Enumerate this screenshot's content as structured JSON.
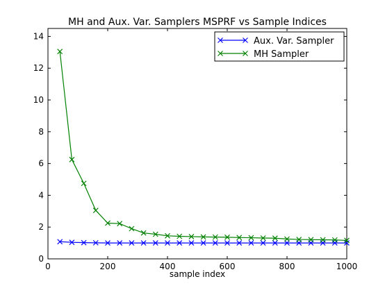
{
  "chart_data": {
    "type": "line",
    "title": "MH and Aux. Var. Samplers MSPRF vs Sample Indices",
    "xlabel": "sample index",
    "ylabel": "",
    "xlim": [
      0,
      1000
    ],
    "ylim": [
      0,
      14.5
    ],
    "xticks": [
      0,
      200,
      400,
      600,
      800,
      1000
    ],
    "yticks": [
      0,
      2,
      4,
      6,
      8,
      10,
      12,
      14
    ],
    "grid": false,
    "legend_position": "top-right",
    "x": [
      40,
      80,
      120,
      160,
      200,
      240,
      280,
      320,
      360,
      400,
      440,
      480,
      520,
      560,
      600,
      640,
      680,
      720,
      760,
      800,
      840,
      880,
      920,
      960,
      1000
    ],
    "series": [
      {
        "name": "Aux. Var. Sampler",
        "color": "#0000ff",
        "marker": "x",
        "values": [
          1.08,
          1.04,
          1.02,
          1.01,
          1.0,
          1.0,
          1.0,
          1.0,
          1.0,
          1.0,
          1.0,
          1.0,
          1.0,
          1.0,
          1.0,
          1.0,
          1.0,
          1.0,
          1.0,
          1.0,
          1.0,
          1.0,
          1.0,
          1.0,
          1.0
        ]
      },
      {
        "name": "MH Sampler",
        "color": "#008000",
        "marker": "x",
        "values": [
          13.05,
          6.25,
          4.75,
          3.05,
          2.25,
          2.22,
          1.9,
          1.63,
          1.55,
          1.45,
          1.42,
          1.4,
          1.38,
          1.37,
          1.36,
          1.34,
          1.33,
          1.31,
          1.3,
          1.25,
          1.22,
          1.21,
          1.2,
          1.19,
          1.16
        ]
      }
    ]
  }
}
